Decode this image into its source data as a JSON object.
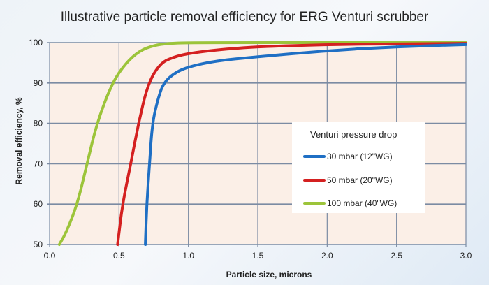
{
  "chart_data": {
    "type": "line",
    "title": "Illustrative particle removal efficiency for ERG Venturi scrubber",
    "xlabel": "Particle size, microns",
    "ylabel": "Removal efficiency, %",
    "xlim": [
      0,
      3.0
    ],
    "ylim": [
      50,
      100
    ],
    "xticks": [
      "0.0",
      "0.5",
      "1.0",
      "1.5",
      "2.0",
      "2.5",
      "3.0"
    ],
    "yticks": [
      "50",
      "60",
      "70",
      "80",
      "90",
      "100"
    ],
    "grid": true,
    "legend": {
      "title": "Venturi pressure drop",
      "placement": "center-right"
    },
    "series": [
      {
        "name": "30 mbar (12\"WG)",
        "color": "#1f6fc4",
        "x": [
          0.69,
          0.7,
          0.72,
          0.74,
          0.78,
          0.82,
          0.9,
          1.0,
          1.2,
          1.5,
          2.0,
          2.5,
          3.0
        ],
        "y": [
          50,
          60,
          70,
          80,
          86,
          90,
          92.5,
          94,
          95.5,
          96.5,
          98,
          99,
          99.5
        ]
      },
      {
        "name": "50 mbar (20\"WG)",
        "color": "#d42020",
        "x": [
          0.49,
          0.525,
          0.585,
          0.64,
          0.71,
          0.8,
          0.9,
          1.0,
          1.2,
          1.5,
          2.0,
          2.5,
          3.0
        ],
        "y": [
          50,
          60,
          70,
          80,
          90,
          95,
          96.5,
          97.3,
          98.2,
          99,
          99.5,
          99.7,
          99.8
        ]
      },
      {
        "name": "100 mbar (40\"WG)",
        "color": "#9cc43a",
        "x": [
          0.07,
          0.12,
          0.2,
          0.27,
          0.34,
          0.45,
          0.55,
          0.65,
          0.75,
          0.85,
          1.0,
          2.0,
          3.0
        ],
        "y": [
          50,
          53,
          60,
          70,
          80,
          90,
          95,
          98,
          99.3,
          99.8,
          100,
          100,
          100
        ]
      }
    ]
  }
}
